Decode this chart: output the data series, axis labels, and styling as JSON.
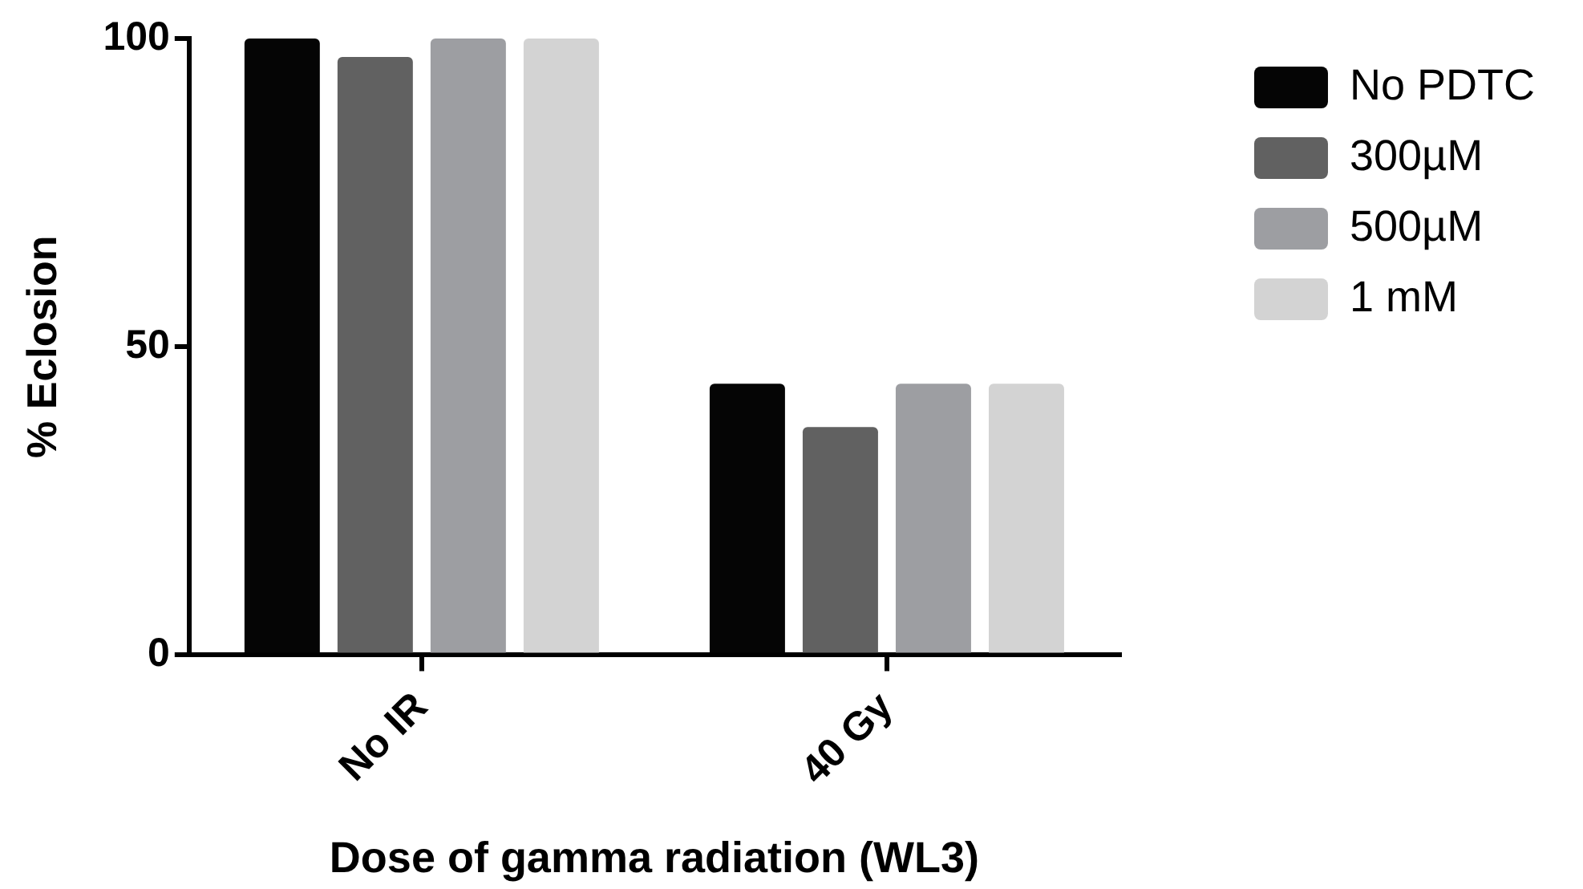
{
  "chart_data": {
    "type": "bar",
    "xlabel": "Dose of gamma radiation (WL3)",
    "ylabel": "% Eclosion",
    "categories": [
      "No IR",
      "40 Gy"
    ],
    "series": [
      {
        "name": "No PDTC",
        "color": "#050505",
        "values": [
          100,
          44
        ]
      },
      {
        "name": "300µM",
        "color": "#616161",
        "values": [
          97,
          37
        ]
      },
      {
        "name": "500µM",
        "color": "#9d9ea2",
        "values": [
          100,
          44
        ]
      },
      {
        "name": "1 mM",
        "color": "#d3d3d3",
        "values": [
          100,
          44
        ]
      }
    ],
    "ylim": [
      0,
      100
    ],
    "yticks": [
      0,
      50,
      100
    ],
    "grid": false,
    "legend": "top right"
  }
}
